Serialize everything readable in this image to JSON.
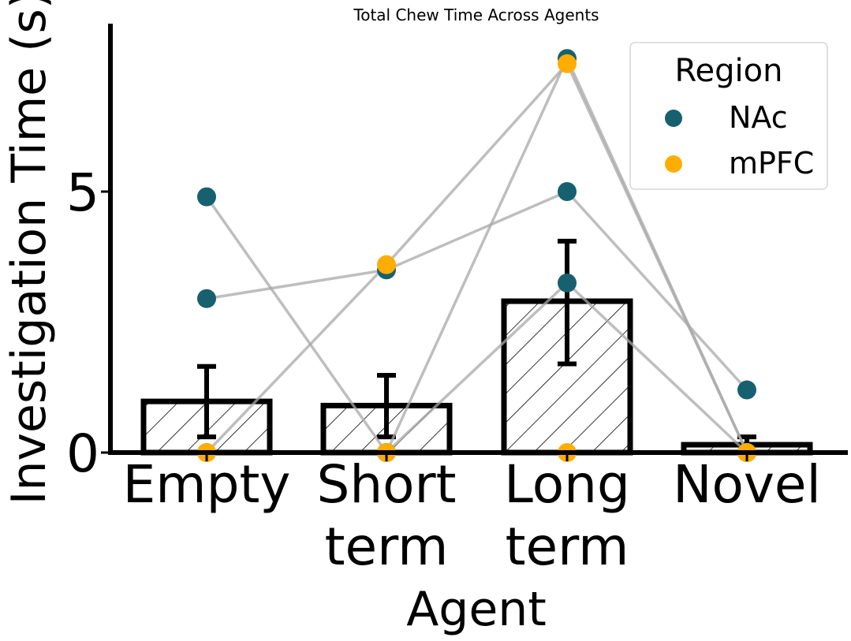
{
  "chart_data": {
    "type": "bar",
    "title": "Total Chew Time Across Agents",
    "xlabel": "Agent",
    "ylabel": "Investigation Time (s)",
    "categories": [
      "Empty",
      "Short term",
      "Long term",
      "Novel"
    ],
    "category_lines": [
      [
        "Empty"
      ],
      [
        "Short",
        "term"
      ],
      [
        "Long",
        "term"
      ],
      [
        "Novel"
      ]
    ],
    "yticks": [
      0,
      5
    ],
    "ylim": [
      0,
      8.2
    ],
    "bar_values": [
      0.98,
      0.9,
      2.9,
      0.15
    ],
    "error_low": [
      0.3,
      0.3,
      1.7,
      0.0
    ],
    "error_high": [
      1.65,
      1.48,
      4.05,
      0.3
    ],
    "grid": false,
    "legend": {
      "title": "Region",
      "placement": "top-right",
      "entries": [
        {
          "name": "NAc",
          "color": "#17606f"
        },
        {
          "name": "mPFC",
          "color": "#ffad00"
        }
      ]
    },
    "subjects": [
      {
        "region": "NAc",
        "values": [
          4.9,
          0.0,
          7.55,
          0.0
        ]
      },
      {
        "region": "NAc",
        "values": [
          2.95,
          3.5,
          5.0,
          1.2
        ]
      },
      {
        "region": "NAc",
        "values": [
          0.0,
          0.0,
          3.25,
          0.0
        ]
      },
      {
        "region": "mPFC",
        "values": [
          0.0,
          3.6,
          7.45,
          0.0
        ]
      },
      {
        "region": "mPFC",
        "values": [
          0.0,
          0.0,
          0.0,
          0.0
        ]
      }
    ],
    "colors": {
      "NAc": "#17606f",
      "mPFC": "#ffad00",
      "connector": "#a8a8a8"
    }
  }
}
